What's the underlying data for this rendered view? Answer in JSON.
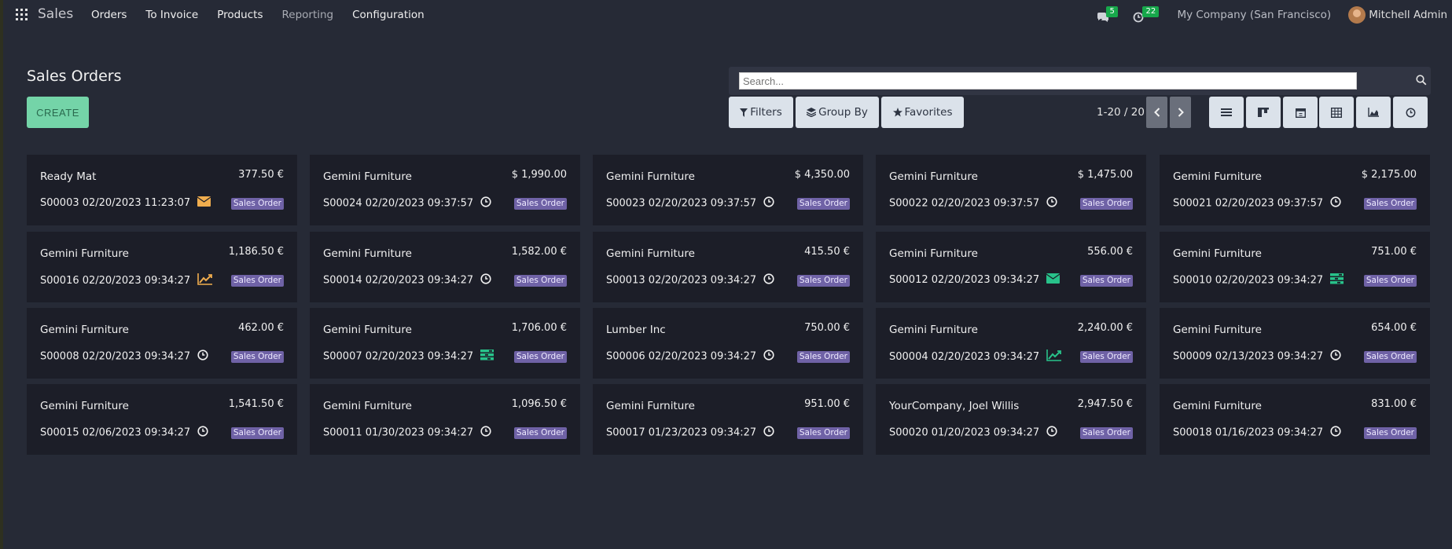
{
  "navbar": {
    "brand": "Sales",
    "menu": [
      "Orders",
      "To Invoice",
      "Products",
      "Reporting",
      "Configuration"
    ],
    "messages_count": "5",
    "activities_count": "22",
    "company": "My Company (San Francisco)",
    "user": "Mitchell Admin"
  },
  "control": {
    "title": "Sales Orders",
    "create_label": "CREATE",
    "search_placeholder": "Search...",
    "filters_label": "Filters",
    "groupby_label": "Group By",
    "favorites_label": "Favorites",
    "pager": "1-20 / 20"
  },
  "colors": {
    "accent": "#74d4a8",
    "tag": "#6f62a6",
    "activity_warning": "#f0ad4e",
    "activity_success": "#28c28a"
  },
  "cards": [
    {
      "customer": "Ready Mat",
      "amount": "377.50 €",
      "ref": "S00003 02/20/2023 11:23:07",
      "tag": "Sales Order",
      "icon": "envelope-icon-orange"
    },
    {
      "customer": "Gemini Furniture",
      "amount": "$ 1,990.00",
      "ref": "S00024 02/20/2023 09:37:57",
      "tag": "Sales Order",
      "icon": "clock-icon"
    },
    {
      "customer": "Gemini Furniture",
      "amount": "$ 4,350.00",
      "ref": "S00023 02/20/2023 09:37:57",
      "tag": "Sales Order",
      "icon": "clock-icon"
    },
    {
      "customer": "Gemini Furniture",
      "amount": "$ 1,475.00",
      "ref": "S00022 02/20/2023 09:37:57",
      "tag": "Sales Order",
      "icon": "clock-icon"
    },
    {
      "customer": "Gemini Furniture",
      "amount": "$ 2,175.00",
      "ref": "S00021 02/20/2023 09:37:57",
      "tag": "Sales Order",
      "icon": "clock-icon"
    },
    {
      "customer": "Gemini Furniture",
      "amount": "1,186.50 €",
      "ref": "S00016 02/20/2023 09:34:27",
      "tag": "Sales Order",
      "icon": "chart-line-icon-orange"
    },
    {
      "customer": "Gemini Furniture",
      "amount": "1,582.00 €",
      "ref": "S00014 02/20/2023 09:34:27",
      "tag": "Sales Order",
      "icon": "clock-icon"
    },
    {
      "customer": "Gemini Furniture",
      "amount": "415.50 €",
      "ref": "S00013 02/20/2023 09:34:27",
      "tag": "Sales Order",
      "icon": "clock-icon"
    },
    {
      "customer": "Gemini Furniture",
      "amount": "556.00 €",
      "ref": "S00012 02/20/2023 09:34:27",
      "tag": "Sales Order",
      "icon": "envelope-icon-green"
    },
    {
      "customer": "Gemini Furniture",
      "amount": "751.00 €",
      "ref": "S00010 02/20/2023 09:34:27",
      "tag": "Sales Order",
      "icon": "tasks-icon-green"
    },
    {
      "customer": "Gemini Furniture",
      "amount": "462.00 €",
      "ref": "S00008 02/20/2023 09:34:27",
      "tag": "Sales Order",
      "icon": "clock-icon"
    },
    {
      "customer": "Gemini Furniture",
      "amount": "1,706.00 €",
      "ref": "S00007 02/20/2023 09:34:27",
      "tag": "Sales Order",
      "icon": "tasks-icon-green"
    },
    {
      "customer": "Lumber Inc",
      "amount": "750.00 €",
      "ref": "S00006 02/20/2023 09:34:27",
      "tag": "Sales Order",
      "icon": "clock-icon"
    },
    {
      "customer": "Gemini Furniture",
      "amount": "2,240.00 €",
      "ref": "S00004 02/20/2023 09:34:27",
      "tag": "Sales Order",
      "icon": "chart-line-icon-green"
    },
    {
      "customer": "Gemini Furniture",
      "amount": "654.00 €",
      "ref": "S00009 02/13/2023 09:34:27",
      "tag": "Sales Order",
      "icon": "clock-icon"
    },
    {
      "customer": "Gemini Furniture",
      "amount": "1,541.50 €",
      "ref": "S00015 02/06/2023 09:34:27",
      "tag": "Sales Order",
      "icon": "clock-icon"
    },
    {
      "customer": "Gemini Furniture",
      "amount": "1,096.50 €",
      "ref": "S00011 01/30/2023 09:34:27",
      "tag": "Sales Order",
      "icon": "clock-icon"
    },
    {
      "customer": "Gemini Furniture",
      "amount": "951.00 €",
      "ref": "S00017 01/23/2023 09:34:27",
      "tag": "Sales Order",
      "icon": "clock-icon"
    },
    {
      "customer": "YourCompany, Joel Willis",
      "amount": "2,947.50 €",
      "ref": "S00020 01/20/2023 09:34:27",
      "tag": "Sales Order",
      "icon": "clock-icon"
    },
    {
      "customer": "Gemini Furniture",
      "amount": "831.00 €",
      "ref": "S00018 01/16/2023 09:34:27",
      "tag": "Sales Order",
      "icon": "clock-icon"
    }
  ]
}
